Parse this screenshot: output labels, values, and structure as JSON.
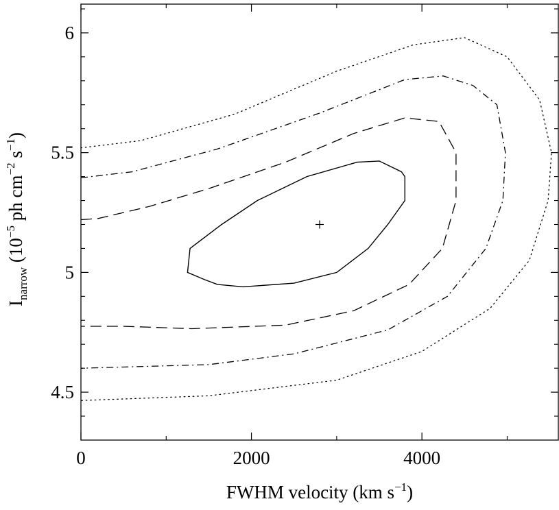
{
  "chart_data": {
    "type": "contour",
    "title": "",
    "xlabel": {
      "main": "FWHM velocity (km s",
      "sup": "−1",
      "close": ")"
    },
    "ylabel": {
      "main": "I",
      "sub": "narrow",
      "rest": " (10",
      "sup1": "−5",
      "mid": " ph cm",
      "sup2": "−2",
      "mid2": " s",
      "sup3": "−1",
      "close": ")"
    },
    "xlim": [
      0,
      5600
    ],
    "ylim": [
      4.3,
      6.12
    ],
    "x_ticks": [
      0,
      2000,
      4000
    ],
    "x_tick_labels": [
      "0",
      "2000",
      "4000"
    ],
    "x_minor_ticks": [
      1000,
      3000,
      5000
    ],
    "y_ticks": [
      4.5,
      5.0,
      5.5,
      6.0
    ],
    "y_tick_labels": [
      "4.5",
      "5",
      "5.5",
      "6"
    ],
    "y_minor_ticks": [
      4.4,
      4.6,
      4.7,
      4.8,
      4.9,
      5.1,
      5.2,
      5.3,
      5.4,
      5.6,
      5.7,
      5.8,
      5.9,
      6.1
    ],
    "best_fit": {
      "x": 2800,
      "y": 5.2
    },
    "contours": [
      {
        "style": "solid",
        "closed": true,
        "points": [
          [
            1250,
            5.0
          ],
          [
            1280,
            5.1
          ],
          [
            1650,
            5.2
          ],
          [
            2070,
            5.3
          ],
          [
            2650,
            5.4
          ],
          [
            3240,
            5.46
          ],
          [
            3500,
            5.465
          ],
          [
            3760,
            5.42
          ],
          [
            3800,
            5.4
          ],
          [
            3800,
            5.3
          ],
          [
            3600,
            5.2
          ],
          [
            3370,
            5.1
          ],
          [
            3000,
            5.0
          ],
          [
            2500,
            4.955
          ],
          [
            1900,
            4.94
          ],
          [
            1600,
            4.95
          ],
          [
            1450,
            4.97
          ],
          [
            1250,
            5.0
          ]
        ]
      },
      {
        "style": "dashed",
        "closed": false,
        "points": [
          [
            0,
            5.22
          ],
          [
            200,
            5.225
          ],
          [
            800,
            5.275
          ],
          [
            1500,
            5.35
          ],
          [
            2400,
            5.46
          ],
          [
            3200,
            5.58
          ],
          [
            3800,
            5.645
          ],
          [
            4200,
            5.63
          ],
          [
            4400,
            5.5
          ],
          [
            4400,
            5.3
          ],
          [
            4240,
            5.1
          ],
          [
            3850,
            4.95
          ],
          [
            3200,
            4.84
          ],
          [
            2400,
            4.78
          ],
          [
            1300,
            4.765
          ],
          [
            500,
            4.775
          ],
          [
            0,
            4.775
          ]
        ]
      },
      {
        "style": "dashdot",
        "closed": false,
        "points": [
          [
            0,
            5.395
          ],
          [
            600,
            5.42
          ],
          [
            1600,
            5.515
          ],
          [
            2800,
            5.665
          ],
          [
            3800,
            5.805
          ],
          [
            4250,
            5.82
          ],
          [
            4600,
            5.78
          ],
          [
            4880,
            5.7
          ],
          [
            4980,
            5.5
          ],
          [
            4950,
            5.3
          ],
          [
            4750,
            5.1
          ],
          [
            4300,
            4.9
          ],
          [
            3600,
            4.76
          ],
          [
            2500,
            4.66
          ],
          [
            1500,
            4.615
          ],
          [
            0,
            4.6
          ]
        ]
      },
      {
        "style": "dotted",
        "closed": false,
        "points": [
          [
            0,
            5.52
          ],
          [
            700,
            5.55
          ],
          [
            1800,
            5.66
          ],
          [
            3000,
            5.84
          ],
          [
            3900,
            5.95
          ],
          [
            4500,
            5.98
          ],
          [
            5000,
            5.9
          ],
          [
            5380,
            5.72
          ],
          [
            5520,
            5.5
          ],
          [
            5480,
            5.3
          ],
          [
            5260,
            5.05
          ],
          [
            4800,
            4.85
          ],
          [
            4000,
            4.67
          ],
          [
            3000,
            4.55
          ],
          [
            1500,
            4.485
          ],
          [
            0,
            4.465
          ]
        ]
      }
    ]
  }
}
